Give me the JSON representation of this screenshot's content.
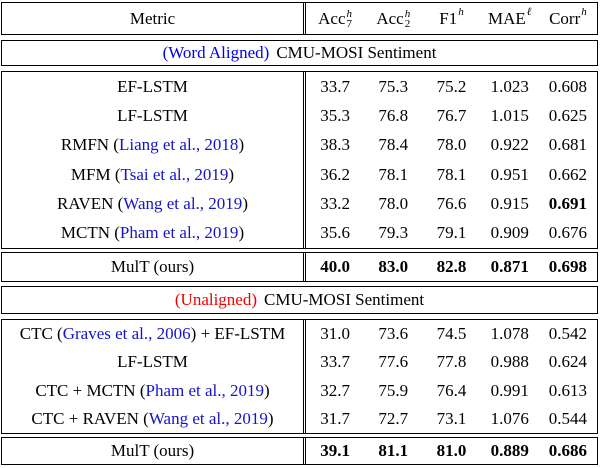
{
  "header": {
    "metric_label": "Metric",
    "columns": [
      {
        "base": "Acc",
        "sub": "7",
        "sup": "h"
      },
      {
        "base": "Acc",
        "sub": "2",
        "sup": "h"
      },
      {
        "base": "F1",
        "sup": "h"
      },
      {
        "base": "MAE",
        "sup": "ℓ"
      },
      {
        "base": "Corr",
        "sup": "h"
      }
    ]
  },
  "aligned": {
    "banner": {
      "tag": "(Word Aligned)",
      "title": "CMU-MOSI Sentiment"
    },
    "rows": [
      {
        "label_pre": "EF-LSTM",
        "label_cite": "",
        "label_post": "",
        "values": [
          "33.7",
          "75.3",
          "75.2",
          "1.023",
          "0.608"
        ]
      },
      {
        "label_pre": "LF-LSTM",
        "label_cite": "",
        "label_post": "",
        "values": [
          "35.3",
          "76.8",
          "76.7",
          "1.015",
          "0.625"
        ]
      },
      {
        "label_pre": "RMFN (",
        "label_cite": "Liang et al., 2018",
        "label_post": ")",
        "values": [
          "38.3",
          "78.4",
          "78.0",
          "0.922",
          "0.681"
        ]
      },
      {
        "label_pre": "MFM (",
        "label_cite": "Tsai et al., 2019",
        "label_post": ")",
        "values": [
          "36.2",
          "78.1",
          "78.1",
          "0.951",
          "0.662"
        ]
      },
      {
        "label_pre": "RAVEN (",
        "label_cite": "Wang et al., 2019",
        "label_post": ")",
        "values": [
          "33.2",
          "78.0",
          "76.6",
          "0.915",
          "0.691"
        ]
      },
      {
        "label_pre": "MCTN (",
        "label_cite": "Pham et al., 2019",
        "label_post": ")",
        "values": [
          "35.6",
          "79.3",
          "79.1",
          "0.909",
          "0.676"
        ]
      }
    ],
    "mult": {
      "label": "MulT (ours)",
      "values": [
        "40.0",
        "83.0",
        "82.8",
        "0.871",
        "0.698"
      ]
    }
  },
  "unaligned": {
    "banner": {
      "tag": "(Unaligned)",
      "title": "CMU-MOSI Sentiment"
    },
    "rows": [
      {
        "label_pre": "CTC (",
        "label_cite": "Graves et al., 2006",
        "label_post": ") + EF-LSTM",
        "values": [
          "31.0",
          "73.6",
          "74.5",
          "1.078",
          "0.542"
        ]
      },
      {
        "label_pre": "LF-LSTM",
        "label_cite": "",
        "label_post": "",
        "values": [
          "33.7",
          "77.6",
          "77.8",
          "0.988",
          "0.624"
        ]
      },
      {
        "label_pre": "CTC + MCTN (",
        "label_cite": "Pham et al., 2019",
        "label_post": ")",
        "values": [
          "32.7",
          "75.9",
          "76.4",
          "0.991",
          "0.613"
        ]
      },
      {
        "label_pre": "CTC + RAVEN (",
        "label_cite": "Wang et al., 2019",
        "label_post": ")",
        "values": [
          "31.7",
          "72.7",
          "73.1",
          "1.076",
          "0.544"
        ]
      }
    ],
    "mult": {
      "label": "MulT (ours)",
      "values": [
        "39.1",
        "81.1",
        "81.0",
        "0.889",
        "0.686"
      ]
    }
  },
  "colors": {
    "citation_blue": "#1414C8",
    "aligned_tag_blue": "#0000EE",
    "unaligned_tag_red": "#EE0000",
    "border_black": "#000000"
  }
}
